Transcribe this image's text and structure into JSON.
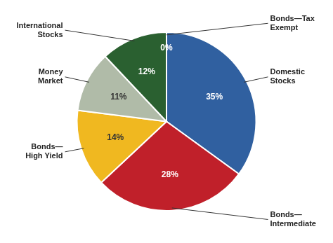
{
  "chart_data": {
    "type": "pie",
    "categories": [
      "Domestic\nStocks",
      "Bonds—\nIntermediate",
      "Bonds—\nHigh Yield",
      "Money\nMarket",
      "International\nStocks",
      "Bonds—Tax\nExempt"
    ],
    "values": [
      35,
      28,
      14,
      11,
      12,
      0
    ],
    "value_labels": [
      "35%",
      "28%",
      "14%",
      "11%",
      "12%",
      "0%"
    ],
    "colors": [
      "#3060A0",
      "#C0202A",
      "#F0B820",
      "#B0BBA8",
      "#2A6030",
      "#F0B820"
    ],
    "data_labels": true
  }
}
